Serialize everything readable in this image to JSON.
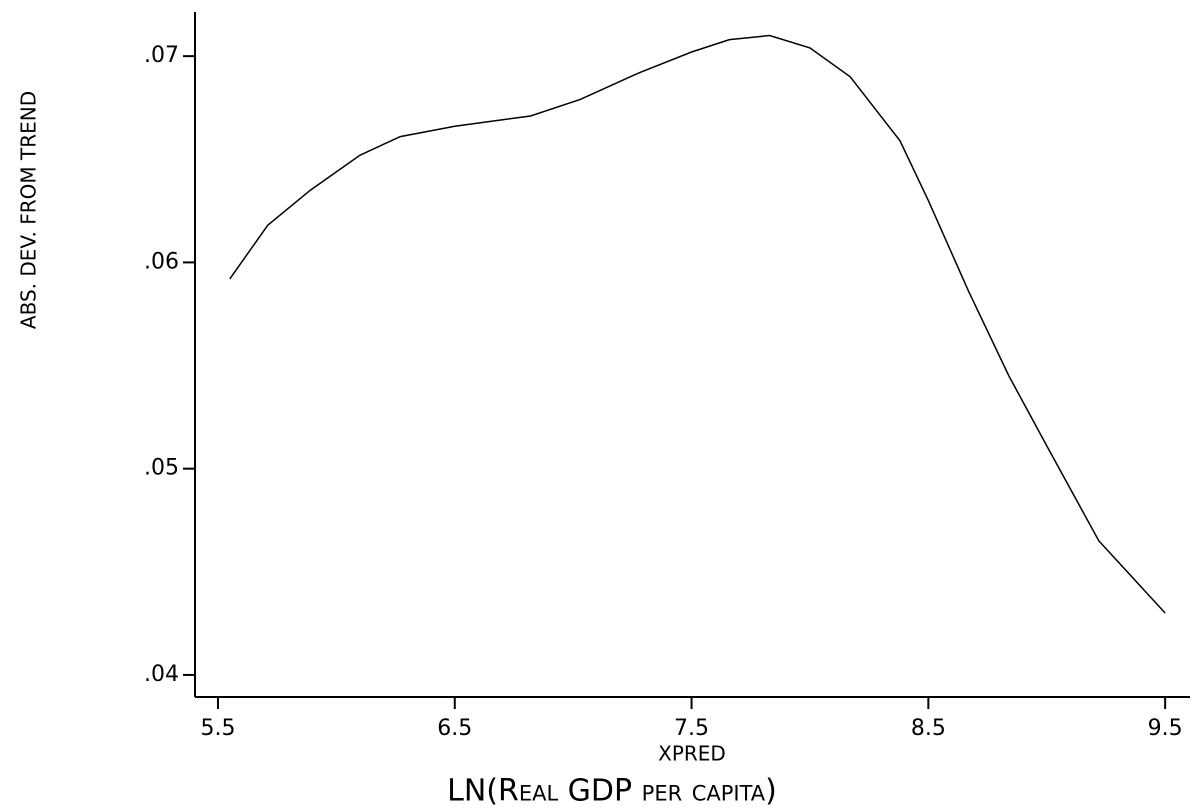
{
  "chart_data": {
    "type": "line",
    "xlabel": "XPRED",
    "xtitle": "LN(Real GDP per capita)",
    "ylabel": "ABS. DEV. FROM TREND",
    "x": [
      5.55,
      5.71,
      5.89,
      6.1,
      6.27,
      6.5,
      6.82,
      7.03,
      7.28,
      7.5,
      7.66,
      7.83,
      8.0,
      8.17,
      8.38,
      8.5,
      8.67,
      8.84,
      9.01,
      9.22,
      9.5
    ],
    "series": [
      {
        "color": "#000000",
        "values": [
          0.0592,
          0.0618,
          0.0635,
          0.0652,
          0.0661,
          0.0666,
          0.0671,
          0.0679,
          0.0692,
          0.0702,
          0.0708,
          0.071,
          0.0704,
          0.069,
          0.0659,
          0.063,
          0.0586,
          0.0545,
          0.0509,
          0.0465,
          0.043
        ]
      }
    ],
    "xlim": [
      5.403,
      9.605
    ],
    "ylim": [
      0.03893,
      0.07214
    ],
    "xticks": [
      5.5,
      6.5,
      7.5,
      8.5,
      9.5
    ],
    "yticks": [
      {
        "value": 0.04,
        "label": ".04"
      },
      {
        "value": 0.05,
        "label": ".05"
      },
      {
        "value": 0.06,
        "label": ".06"
      },
      {
        "value": 0.07,
        "label": ".07"
      }
    ],
    "grid": false
  }
}
